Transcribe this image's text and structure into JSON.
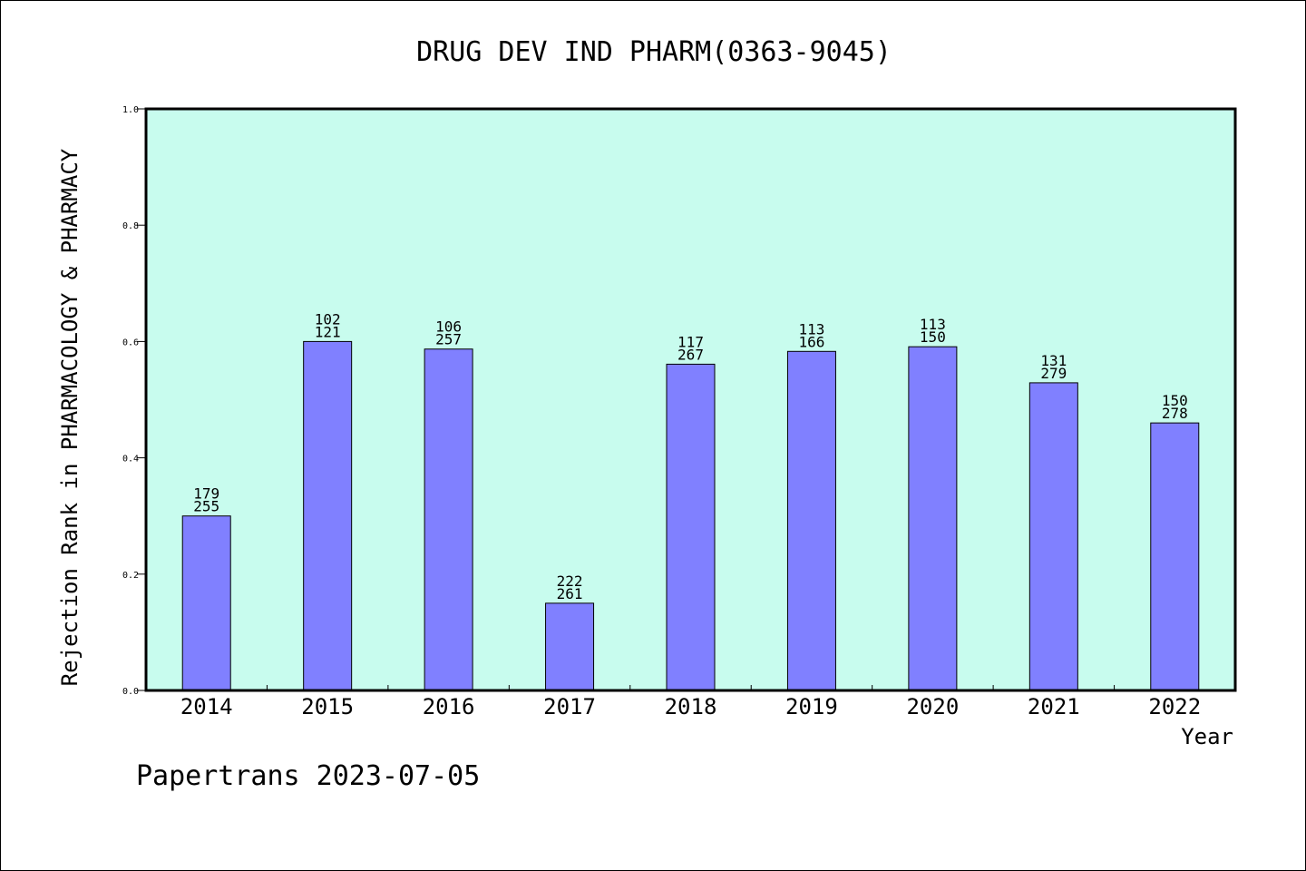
{
  "chart_data": {
    "type": "bar",
    "title": "DRUG DEV IND PHARM(0363-9045)",
    "xlabel": "Year",
    "ylabel": "Rejection Rank in PHARMACOLOGY & PHARMACY",
    "categories": [
      "2014",
      "2015",
      "2016",
      "2017",
      "2018",
      "2019",
      "2020",
      "2021",
      "2022"
    ],
    "values": [
      0.3,
      0.6,
      0.587,
      0.15,
      0.561,
      0.583,
      0.591,
      0.529,
      0.46
    ],
    "labels_top": [
      "179",
      "102",
      "106",
      "222",
      "117",
      "113",
      "113",
      "131",
      "150"
    ],
    "labels_bottom": [
      "255",
      "121",
      "257",
      "261",
      "267",
      "166",
      "150",
      "279",
      "278"
    ],
    "ylim": [
      0,
      1.0
    ],
    "yticks": [
      "0.0",
      "0.2",
      "0.4",
      "0.6",
      "0.8",
      "1.0"
    ],
    "grid": false,
    "legend": "none",
    "colors": {
      "plot_background": "#c8fcee",
      "bar_fill": "#8080ff",
      "bar_stroke": "#000000"
    }
  },
  "footer": "Papertrans 2023-07-05"
}
